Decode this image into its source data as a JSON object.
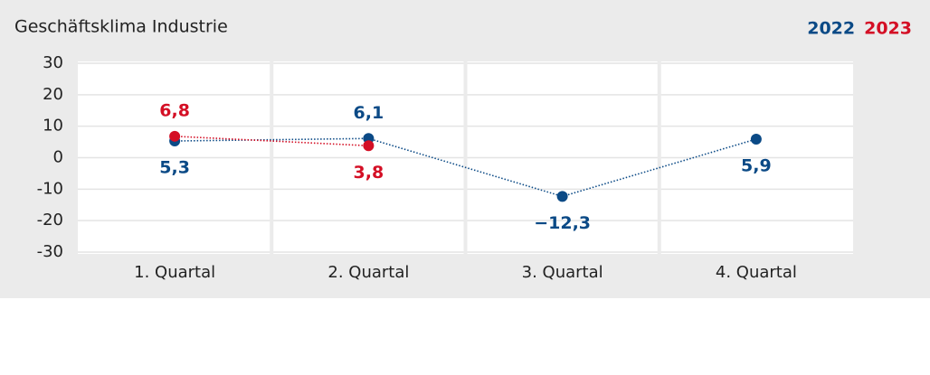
{
  "chart_data": {
    "type": "line",
    "title": "Geschäftsklima Industrie",
    "categories": [
      "1. Quartal",
      "2. Quartal",
      "3. Quartal",
      "4. Quartal"
    ],
    "series": [
      {
        "name": "2022",
        "color": "#0b4a86",
        "values": [
          5.3,
          6.1,
          -12.3,
          5.9
        ],
        "value_labels": [
          "5,3",
          "6,1",
          "−12,3",
          "5,9"
        ]
      },
      {
        "name": "2023",
        "color": "#d40f25",
        "values": [
          6.8,
          3.8,
          null,
          null
        ],
        "value_labels": [
          "6,8",
          "3,8",
          null,
          null
        ]
      }
    ],
    "ylim": [
      -30,
      30
    ],
    "yticks": [
      30,
      20,
      10,
      0,
      -10,
      -20,
      -30
    ],
    "grid": true
  }
}
